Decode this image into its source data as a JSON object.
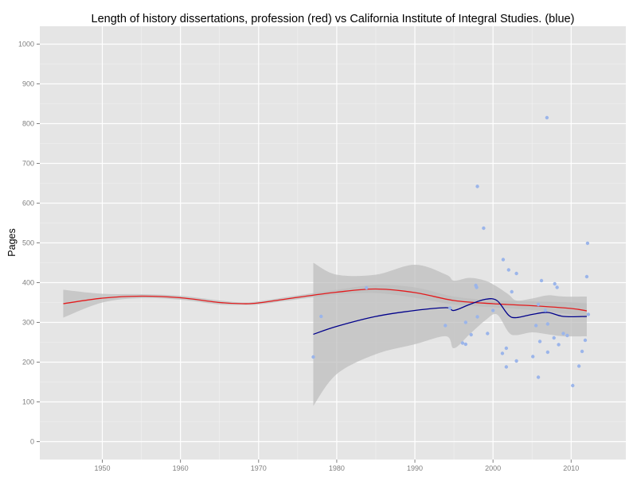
{
  "chart_data": {
    "type": "scatter",
    "title": "Length of history dissertations, profession (red) vs California Institute of Integral Studies. (blue)",
    "xlabel": "",
    "ylabel": "Pages",
    "xlim": [
      1942,
      2017
    ],
    "ylim": [
      -45,
      1045
    ],
    "x_ticks": [
      1950,
      1960,
      1970,
      1980,
      1990,
      2000,
      2010
    ],
    "y_ticks": [
      0,
      100,
      200,
      300,
      400,
      500,
      600,
      700,
      800,
      900,
      1000
    ],
    "grid": true,
    "colors": {
      "panel": "#e5e5e5",
      "grid_major": "#ffffff",
      "grid_minor": "#f2f2f2",
      "points": "#9bb5ea",
      "profession_line": "#e31a1c",
      "ciis_line": "#00008b",
      "ribbon": "#bdbdbd",
      "tick_label": "#7f7f7f"
    },
    "series": [
      {
        "mark": "point",
        "color": "#9bb5ea",
        "points": [
          [
            1977,
            213
          ],
          [
            1978,
            315
          ],
          [
            1983.8,
            387
          ],
          [
            1993.9,
            292
          ],
          [
            1994.5,
            336
          ],
          [
            1996.1,
            248
          ],
          [
            1996.5,
            300
          ],
          [
            1996.5,
            245
          ],
          [
            1997.2,
            269
          ],
          [
            1997.8,
            393
          ],
          [
            1997.9,
            388
          ],
          [
            1998,
            642
          ],
          [
            1998,
            314
          ],
          [
            1998.8,
            537
          ],
          [
            1999.3,
            272
          ],
          [
            2000,
            330
          ],
          [
            2001.2,
            222
          ],
          [
            2001.3,
            458
          ],
          [
            2001.7,
            235
          ],
          [
            2001.7,
            188
          ],
          [
            2002,
            432
          ],
          [
            2002.4,
            377
          ],
          [
            2003,
            423
          ],
          [
            2003,
            203
          ],
          [
            2005.1,
            214
          ],
          [
            2005.5,
            292
          ],
          [
            2005.8,
            345
          ],
          [
            2005.8,
            162
          ],
          [
            2006,
            252
          ],
          [
            2006.2,
            405
          ],
          [
            2006.7,
            330
          ],
          [
            2006.9,
            815
          ],
          [
            2007,
            296
          ],
          [
            2007,
            225
          ],
          [
            2007.8,
            261
          ],
          [
            2007.9,
            397
          ],
          [
            2008.2,
            388
          ],
          [
            2008.4,
            244
          ],
          [
            2009,
            272
          ],
          [
            2009.5,
            267
          ],
          [
            2010.2,
            141
          ],
          [
            2011,
            190
          ],
          [
            2011.4,
            227
          ],
          [
            2011.8,
            255
          ],
          [
            2012,
            415
          ],
          [
            2012.1,
            499
          ],
          [
            2012.2,
            320
          ]
        ]
      },
      {
        "mark": "smooth",
        "color": "#e31a1c",
        "x": [
          1945,
          1950,
          1955,
          1960,
          1965,
          1968,
          1970,
          1975,
          1980,
          1985,
          1990,
          1995,
          2000,
          2005,
          2010,
          2012
        ],
        "y": [
          347,
          361,
          366,
          362,
          350,
          347,
          349,
          363,
          376,
          384,
          375,
          355,
          347,
          342,
          335,
          329
        ],
        "band_lower": [
          312,
          350,
          361,
          357,
          345,
          344,
          345,
          358,
          370,
          374,
          362,
          345,
          338,
          331,
          320,
          310
        ],
        "band_upper": [
          382,
          372,
          371,
          367,
          355,
          350,
          353,
          368,
          382,
          394,
          388,
          365,
          356,
          353,
          350,
          348
        ]
      },
      {
        "mark": "smooth",
        "color": "#00008b",
        "x": [
          1977,
          1980,
          1985,
          1990,
          1994,
          1995,
          1997,
          1999,
          2000.5,
          2002,
          2003,
          2005,
          2007,
          2009,
          2012
        ],
        "y": [
          270,
          290,
          315,
          330,
          337,
          330,
          345,
          358,
          355,
          318,
          312,
          320,
          325,
          315,
          315
        ],
        "band_lower": [
          90,
          170,
          220,
          245,
          265,
          235,
          270,
          305,
          320,
          275,
          268,
          275,
          270,
          265,
          265
        ],
        "band_upper": [
          450,
          420,
          420,
          445,
          420,
          405,
          412,
          405,
          390,
          370,
          355,
          360,
          368,
          365,
          365
        ]
      }
    ]
  }
}
